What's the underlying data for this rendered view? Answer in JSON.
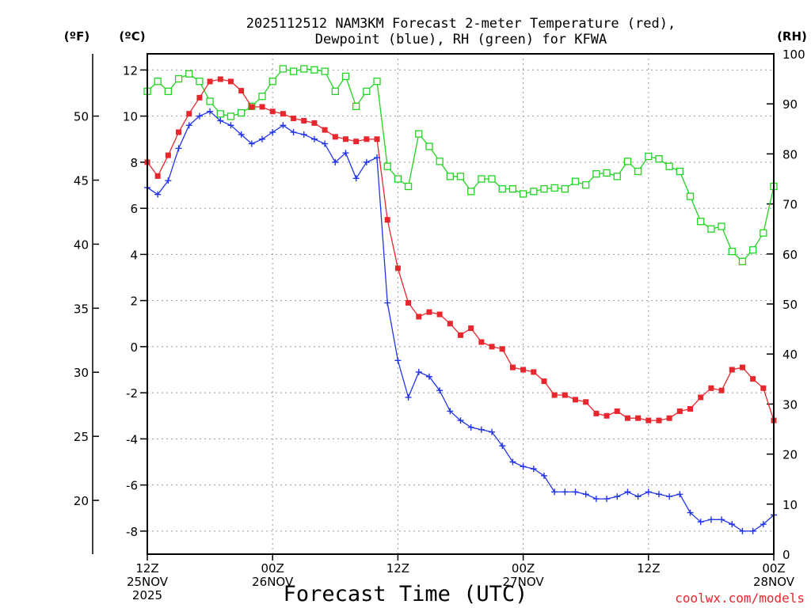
{
  "chart_data": {
    "type": "line",
    "title": [
      "2025112512 NAM3KM Forecast 2-meter Temperature (red),",
      "Dewpoint (blue), RH (green) for KFWA"
    ],
    "units": {
      "f": "(ºF)",
      "c": "(ºC)",
      "rh": "(RH)"
    },
    "xlabel": "Forecast Time (UTC)",
    "credit": "coolwx.com/models",
    "x_range_hours": [
      0,
      60
    ],
    "x_ticks": [
      {
        "hour": 0,
        "lines": [
          "12Z",
          "25NOV",
          "2025"
        ]
      },
      {
        "hour": 12,
        "lines": [
          "00Z",
          "26NOV"
        ]
      },
      {
        "hour": 24,
        "lines": [
          "12Z"
        ]
      },
      {
        "hour": 36,
        "lines": [
          "00Z",
          "27NOV"
        ]
      },
      {
        "hour": 48,
        "lines": [
          "12Z"
        ]
      },
      {
        "hour": 60,
        "lines": [
          "00Z",
          "28NOV"
        ]
      }
    ],
    "ylim_c": [
      -9,
      12.7
    ],
    "ylim_rh": [
      0,
      100
    ],
    "y_ticks_c": [
      12,
      10,
      8,
      6,
      4,
      2,
      0,
      -2,
      -4,
      -6,
      -8
    ],
    "y_ticks_f": [
      50,
      45,
      40,
      35,
      30,
      25,
      20
    ],
    "y_ticks_rh": [
      100,
      90,
      80,
      70,
      60,
      50,
      40,
      30,
      20,
      10,
      0
    ],
    "series": [
      {
        "name": "2-meter Temperature",
        "units": "C",
        "color": "#e8262d",
        "marker": "filled-square",
        "x_hours": [
          0,
          1,
          2,
          3,
          4,
          5,
          6,
          7,
          8,
          9,
          10,
          11,
          12,
          13,
          14,
          15,
          16,
          17,
          18,
          19,
          20,
          21,
          22,
          23,
          24,
          25,
          26,
          27,
          28,
          29,
          30,
          31,
          32,
          33,
          34,
          35,
          36,
          37,
          38,
          39,
          40,
          41,
          42,
          43,
          44,
          45,
          46,
          47,
          48,
          49,
          50,
          51,
          52,
          53,
          54,
          55,
          56,
          57,
          58,
          59,
          60
        ],
        "values": [
          8.0,
          7.4,
          8.3,
          9.3,
          10.1,
          10.8,
          11.5,
          11.6,
          11.5,
          11.1,
          10.4,
          10.4,
          10.2,
          10.1,
          9.9,
          9.8,
          9.7,
          9.4,
          9.1,
          9.0,
          8.9,
          9.0,
          9.0,
          5.5,
          3.4,
          1.9,
          1.3,
          1.5,
          1.4,
          1.0,
          0.5,
          0.8,
          0.2,
          0.0,
          -0.1,
          -0.9,
          -1.0,
          -1.1,
          -1.5,
          -2.1,
          -2.1,
          -2.3,
          -2.4,
          -2.9,
          -3.0,
          -2.8,
          -3.1,
          -3.1,
          -3.2,
          -3.2,
          -3.1,
          -2.8,
          -2.7,
          -2.2,
          -1.8,
          -1.9,
          -1.0,
          -0.9,
          -1.4,
          -1.8,
          -3.2
        ]
      },
      {
        "name": "Dewpoint",
        "units": "C",
        "color": "#2236e8",
        "marker": "plus",
        "x_hours": [
          0,
          1,
          2,
          3,
          4,
          5,
          6,
          7,
          8,
          9,
          10,
          11,
          12,
          13,
          14,
          15,
          16,
          17,
          18,
          19,
          20,
          21,
          22,
          23,
          24,
          25,
          26,
          27,
          28,
          29,
          30,
          31,
          32,
          33,
          34,
          35,
          36,
          37,
          38,
          39,
          40,
          41,
          42,
          43,
          44,
          45,
          46,
          47,
          48,
          49,
          50,
          51,
          52,
          53,
          54,
          55,
          56,
          57,
          58,
          59,
          60
        ],
        "values": [
          6.9,
          6.6,
          7.2,
          8.6,
          9.6,
          10.0,
          10.2,
          9.8,
          9.6,
          9.2,
          8.8,
          9.0,
          9.3,
          9.6,
          9.3,
          9.2,
          9.0,
          8.8,
          8.0,
          8.4,
          7.3,
          8.0,
          8.2,
          1.9,
          -0.6,
          -2.2,
          -1.1,
          -1.3,
          -1.9,
          -2.8,
          -3.2,
          -3.5,
          -3.6,
          -3.7,
          -4.3,
          -5.0,
          -5.2,
          -5.3,
          -5.6,
          -6.3,
          -6.3,
          -6.3,
          -6.4,
          -6.6,
          -6.6,
          -6.5,
          -6.3,
          -6.5,
          -6.3,
          -6.4,
          -6.5,
          -6.4,
          -7.2,
          -7.6,
          -7.5,
          -7.5,
          -7.7,
          -8.0,
          -8.0,
          -7.7,
          -7.3
        ]
      },
      {
        "name": "Relative Humidity",
        "units": "%",
        "color": "#21d421",
        "marker": "open-square",
        "x_hours": [
          0,
          1,
          2,
          3,
          4,
          5,
          6,
          7,
          8,
          9,
          10,
          11,
          12,
          13,
          14,
          15,
          16,
          17,
          18,
          19,
          20,
          21,
          22,
          23,
          24,
          25,
          26,
          27,
          28,
          29,
          30,
          31,
          32,
          33,
          34,
          35,
          36,
          37,
          38,
          39,
          40,
          41,
          42,
          43,
          44,
          45,
          46,
          47,
          48,
          49,
          50,
          51,
          52,
          53,
          54,
          55,
          56,
          57,
          58,
          59,
          60
        ],
        "values": [
          92.5,
          94.5,
          92.5,
          95,
          96,
          94.5,
          90.5,
          88,
          87.5,
          88.2,
          89.5,
          91.5,
          94.5,
          97,
          96.5,
          97,
          96.8,
          96.5,
          92.5,
          95.5,
          89.5,
          92.5,
          94.5,
          77.5,
          75,
          73.5,
          84,
          81.5,
          78.5,
          75.5,
          75.5,
          72.5,
          75,
          75,
          73,
          73,
          72,
          72.5,
          73,
          73.2,
          73,
          74.5,
          73.8,
          76,
          76.2,
          75.5,
          78.5,
          76.5,
          79.5,
          79,
          77.5,
          76.5,
          71.5,
          66.5,
          65,
          65.5,
          60.5,
          58.5,
          60.8,
          64.2,
          73.5
        ]
      }
    ]
  }
}
